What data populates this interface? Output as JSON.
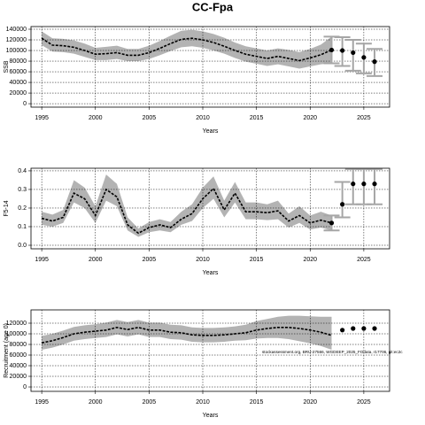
{
  "chart_data": [
    {
      "type": "line",
      "title": "CC-Fpa",
      "xlabel": "Years",
      "ylabel": "SSB",
      "x": [
        1995,
        1996,
        1997,
        1998,
        1999,
        2000,
        2001,
        2002,
        2003,
        2004,
        2005,
        2006,
        2007,
        2008,
        2009,
        2010,
        2011,
        2012,
        2013,
        2014,
        2015,
        2016,
        2017,
        2018,
        2019,
        2020,
        2021,
        2022
      ],
      "values": [
        123000,
        110000,
        109000,
        106000,
        100000,
        93000,
        94000,
        96000,
        91000,
        91000,
        96000,
        104000,
        113000,
        121000,
        123000,
        120000,
        115000,
        108000,
        100000,
        93000,
        89000,
        85000,
        89000,
        85000,
        81000,
        86000,
        92000,
        101000
      ],
      "lower": [
        110000,
        98000,
        97000,
        94000,
        88000,
        82000,
        82000,
        84000,
        80000,
        80000,
        84000,
        91000,
        99000,
        106000,
        108000,
        105000,
        100000,
        94000,
        86000,
        79000,
        75000,
        71000,
        74000,
        70000,
        66000,
        70000,
        74000,
        76000
      ],
      "upper": [
        136000,
        123000,
        122000,
        119000,
        113000,
        105000,
        107000,
        109000,
        103000,
        103000,
        109000,
        118000,
        128000,
        137000,
        139000,
        136000,
        131000,
        124000,
        115000,
        108000,
        104000,
        100000,
        104000,
        101000,
        97000,
        103000,
        111000,
        126000
      ],
      "forecast_x": [
        2022,
        2023,
        2024,
        2025,
        2026
      ],
      "forecast_values": [
        101000,
        100000,
        96000,
        87000,
        79000
      ],
      "forecast_lower": [
        76000,
        71000,
        62000,
        57000,
        52000
      ],
      "forecast_upper": [
        126000,
        125000,
        120000,
        113000,
        103000
      ],
      "xlim": [
        1994,
        2027.4
      ],
      "xticks": [
        1995,
        2000,
        2005,
        2010,
        2015,
        2020,
        2025
      ],
      "ylim": [
        -6500,
        145000
      ],
      "yticks": [
        0,
        20000,
        40000,
        60000,
        80000,
        100000,
        120000,
        140000
      ],
      "grid": true,
      "color": "#000000",
      "band_color": "#b3b3b3",
      "bar_color": "#a6a6a6"
    },
    {
      "type": "line",
      "xlabel": "Years",
      "ylabel": "F5-14",
      "x": [
        1995,
        1996,
        1997,
        1998,
        1999,
        2000,
        2001,
        2002,
        2003,
        2004,
        2005,
        2006,
        2007,
        2008,
        2009,
        2010,
        2011,
        2012,
        2013,
        2014,
        2015,
        2016,
        2017,
        2018,
        2019,
        2020,
        2021,
        2022
      ],
      "values": [
        0.145,
        0.13,
        0.15,
        0.28,
        0.25,
        0.16,
        0.3,
        0.26,
        0.11,
        0.065,
        0.095,
        0.11,
        0.095,
        0.14,
        0.17,
        0.25,
        0.305,
        0.19,
        0.28,
        0.18,
        0.18,
        0.175,
        0.185,
        0.13,
        0.16,
        0.12,
        0.135,
        0.12
      ],
      "lower": [
        0.11,
        0.1,
        0.12,
        0.23,
        0.2,
        0.12,
        0.24,
        0.21,
        0.08,
        0.045,
        0.07,
        0.08,
        0.07,
        0.11,
        0.13,
        0.2,
        0.25,
        0.15,
        0.23,
        0.14,
        0.14,
        0.135,
        0.14,
        0.095,
        0.12,
        0.085,
        0.095,
        0.08
      ],
      "upper": [
        0.18,
        0.165,
        0.19,
        0.35,
        0.31,
        0.21,
        0.38,
        0.33,
        0.15,
        0.09,
        0.125,
        0.14,
        0.125,
        0.18,
        0.22,
        0.31,
        0.37,
        0.24,
        0.34,
        0.23,
        0.23,
        0.22,
        0.24,
        0.17,
        0.21,
        0.16,
        0.18,
        0.16
      ],
      "forecast_x": [
        2022,
        2023,
        2024,
        2025,
        2026
      ],
      "forecast_values": [
        0.12,
        0.22,
        0.33,
        0.33,
        0.33
      ],
      "forecast_lower": [
        0.08,
        0.15,
        0.22,
        0.22,
        0.22
      ],
      "forecast_upper": [
        0.16,
        0.34,
        0.41,
        0.41,
        0.41
      ],
      "xlim": [
        1994,
        2027.4
      ],
      "xticks": [
        1995,
        2000,
        2005,
        2010,
        2015,
        2020,
        2025
      ],
      "ylim": [
        -0.019,
        0.414
      ],
      "yticks": [
        {
          "value": 0,
          "label": "0.0"
        },
        0.1,
        0.2,
        0.3,
        0.4
      ],
      "grid": true,
      "color": "#000000",
      "band_color": "#b3b3b3",
      "bar_color": "#a6a6a6"
    },
    {
      "type": "line",
      "xlabel": "Years",
      "ylabel": "Recruitment (age 0)",
      "annotation": "stockassessment.org, BRU-27566, WGDEEP_2025_FOdata, r17706, git:ec2c",
      "x": [
        1995,
        1996,
        1997,
        1998,
        1999,
        2000,
        2001,
        2002,
        2003,
        2004,
        2005,
        2006,
        2007,
        2008,
        2009,
        2010,
        2011,
        2012,
        2013,
        2014,
        2015,
        2016,
        2017,
        2018,
        2019,
        2020,
        2021,
        2022
      ],
      "values": [
        83000,
        87000,
        93000,
        100000,
        103000,
        105000,
        107000,
        112000,
        108000,
        112000,
        107000,
        107000,
        103000,
        102000,
        98000,
        97000,
        97000,
        98000,
        100000,
        102000,
        107000,
        110000,
        112000,
        112000,
        110000,
        107000,
        103000,
        97000
      ],
      "lower": [
        70000,
        74000,
        80000,
        87000,
        90000,
        92000,
        94000,
        99000,
        95000,
        99000,
        94000,
        94000,
        90000,
        89000,
        85000,
        84000,
        84000,
        85000,
        87000,
        88000,
        91000,
        92000,
        92000,
        90000,
        86000,
        82000,
        77000,
        70000
      ],
      "upper": [
        96000,
        100000,
        106000,
        113000,
        116000,
        118000,
        121000,
        126000,
        122000,
        126000,
        121000,
        121000,
        117000,
        116000,
        112000,
        111000,
        111000,
        112000,
        114000,
        117000,
        124000,
        128000,
        132000,
        134000,
        134000,
        133000,
        132000,
        132000
      ],
      "forecast_x": [
        2023,
        2024,
        2025,
        2026
      ],
      "forecast_values": [
        107000,
        110000,
        110000,
        110000
      ],
      "xlim": [
        1994,
        2027.4
      ],
      "xticks": [
        1995,
        2000,
        2005,
        2010,
        2015,
        2020,
        2025
      ],
      "ylim": [
        -8300,
        145000
      ],
      "yticks": [
        0,
        20000,
        40000,
        60000,
        80000,
        100000,
        120000
      ],
      "grid": true,
      "color": "#000000",
      "band_color": "#b3b3b3",
      "bar_color": "#a6a6a6"
    }
  ]
}
